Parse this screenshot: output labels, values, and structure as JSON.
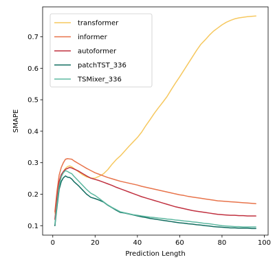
{
  "chart_data": {
    "type": "line",
    "title": "",
    "xlabel": "Prediction Length",
    "ylabel": "SMAPE",
    "xlim": [
      -4.8,
      101.8
    ],
    "ylim": [
      0.07,
      0.795
    ],
    "xticks": [
      0,
      20,
      40,
      60,
      80,
      100
    ],
    "yticks": [
      0.1,
      0.2,
      0.3,
      0.4,
      0.5,
      0.6,
      0.7
    ],
    "grid": false,
    "legend_position": "upper-left",
    "series": [
      {
        "name": "transformer",
        "color": "#f6c85f",
        "points": [
          [
            1,
            0.14
          ],
          [
            2,
            0.19
          ],
          [
            3,
            0.23
          ],
          [
            4,
            0.255
          ],
          [
            5,
            0.272
          ],
          [
            6,
            0.282
          ],
          [
            7,
            0.288
          ],
          [
            8,
            0.29
          ],
          [
            9,
            0.287
          ],
          [
            10,
            0.282
          ],
          [
            12,
            0.272
          ],
          [
            14,
            0.262
          ],
          [
            16,
            0.255
          ],
          [
            18,
            0.251
          ],
          [
            20,
            0.251
          ],
          [
            22,
            0.257
          ],
          [
            24,
            0.265
          ],
          [
            26,
            0.278
          ],
          [
            28,
            0.295
          ],
          [
            30,
            0.31
          ],
          [
            32,
            0.322
          ],
          [
            34,
            0.337
          ],
          [
            36,
            0.352
          ],
          [
            38,
            0.366
          ],
          [
            40,
            0.38
          ],
          [
            42,
            0.397
          ],
          [
            44,
            0.418
          ],
          [
            46,
            0.437
          ],
          [
            48,
            0.457
          ],
          [
            50,
            0.475
          ],
          [
            52,
            0.492
          ],
          [
            54,
            0.51
          ],
          [
            56,
            0.532
          ],
          [
            58,
            0.553
          ],
          [
            60,
            0.573
          ],
          [
            62,
            0.594
          ],
          [
            64,
            0.615
          ],
          [
            66,
            0.636
          ],
          [
            68,
            0.657
          ],
          [
            70,
            0.676
          ],
          [
            72,
            0.69
          ],
          [
            74,
            0.705
          ],
          [
            76,
            0.718
          ],
          [
            78,
            0.728
          ],
          [
            80,
            0.738
          ],
          [
            82,
            0.746
          ],
          [
            84,
            0.752
          ],
          [
            86,
            0.757
          ],
          [
            88,
            0.76
          ],
          [
            90,
            0.762
          ],
          [
            92,
            0.764
          ],
          [
            94,
            0.765
          ],
          [
            96,
            0.766
          ]
        ]
      },
      {
        "name": "informer",
        "color": "#e8734a",
        "points": [
          [
            1,
            0.145
          ],
          [
            2,
            0.21
          ],
          [
            3,
            0.26
          ],
          [
            4,
            0.285
          ],
          [
            5,
            0.3
          ],
          [
            6,
            0.311
          ],
          [
            7,
            0.313
          ],
          [
            8,
            0.312
          ],
          [
            9,
            0.311
          ],
          [
            10,
            0.306
          ],
          [
            12,
            0.298
          ],
          [
            14,
            0.29
          ],
          [
            16,
            0.282
          ],
          [
            18,
            0.275
          ],
          [
            20,
            0.268
          ],
          [
            22,
            0.263
          ],
          [
            24,
            0.258
          ],
          [
            26,
            0.253
          ],
          [
            28,
            0.249
          ],
          [
            30,
            0.245
          ],
          [
            32,
            0.241
          ],
          [
            34,
            0.238
          ],
          [
            36,
            0.235
          ],
          [
            38,
            0.232
          ],
          [
            40,
            0.229
          ],
          [
            42,
            0.225
          ],
          [
            44,
            0.222
          ],
          [
            46,
            0.219
          ],
          [
            48,
            0.216
          ],
          [
            50,
            0.213
          ],
          [
            52,
            0.21
          ],
          [
            54,
            0.207
          ],
          [
            56,
            0.204
          ],
          [
            58,
            0.201
          ],
          [
            60,
            0.198
          ],
          [
            62,
            0.196
          ],
          [
            64,
            0.193
          ],
          [
            66,
            0.191
          ],
          [
            68,
            0.189
          ],
          [
            70,
            0.187
          ],
          [
            72,
            0.185
          ],
          [
            74,
            0.183
          ],
          [
            76,
            0.181
          ],
          [
            78,
            0.179
          ],
          [
            80,
            0.178
          ],
          [
            82,
            0.177
          ],
          [
            84,
            0.176
          ],
          [
            86,
            0.175
          ],
          [
            88,
            0.174
          ],
          [
            90,
            0.173
          ],
          [
            92,
            0.172
          ],
          [
            94,
            0.171
          ],
          [
            96,
            0.17
          ]
        ]
      },
      {
        "name": "autoformer",
        "color": "#c0303f",
        "points": [
          [
            1,
            0.12
          ],
          [
            2,
            0.19
          ],
          [
            3,
            0.24
          ],
          [
            4,
            0.262
          ],
          [
            5,
            0.272
          ],
          [
            6,
            0.279
          ],
          [
            7,
            0.282
          ],
          [
            8,
            0.285
          ],
          [
            9,
            0.283
          ],
          [
            10,
            0.28
          ],
          [
            12,
            0.274
          ],
          [
            14,
            0.266
          ],
          [
            16,
            0.258
          ],
          [
            18,
            0.251
          ],
          [
            20,
            0.247
          ],
          [
            22,
            0.243
          ],
          [
            24,
            0.238
          ],
          [
            26,
            0.233
          ],
          [
            28,
            0.228
          ],
          [
            30,
            0.222
          ],
          [
            32,
            0.217
          ],
          [
            34,
            0.212
          ],
          [
            36,
            0.207
          ],
          [
            38,
            0.202
          ],
          [
            40,
            0.197
          ],
          [
            42,
            0.192
          ],
          [
            44,
            0.188
          ],
          [
            46,
            0.184
          ],
          [
            48,
            0.18
          ],
          [
            50,
            0.176
          ],
          [
            52,
            0.172
          ],
          [
            54,
            0.168
          ],
          [
            56,
            0.164
          ],
          [
            58,
            0.16
          ],
          [
            60,
            0.157
          ],
          [
            62,
            0.154
          ],
          [
            64,
            0.151
          ],
          [
            66,
            0.148
          ],
          [
            68,
            0.146
          ],
          [
            70,
            0.144
          ],
          [
            72,
            0.142
          ],
          [
            74,
            0.14
          ],
          [
            76,
            0.138
          ],
          [
            78,
            0.136
          ],
          [
            80,
            0.135
          ],
          [
            82,
            0.134
          ],
          [
            84,
            0.133
          ],
          [
            86,
            0.133
          ],
          [
            88,
            0.132
          ],
          [
            90,
            0.132
          ],
          [
            92,
            0.131
          ],
          [
            94,
            0.131
          ],
          [
            96,
            0.131
          ]
        ]
      },
      {
        "name": "patchTST_336",
        "color": "#0e6b5e",
        "points": [
          [
            1,
            0.1
          ],
          [
            2,
            0.16
          ],
          [
            3,
            0.215
          ],
          [
            4,
            0.24
          ],
          [
            5,
            0.252
          ],
          [
            6,
            0.258
          ],
          [
            7,
            0.254
          ],
          [
            8,
            0.253
          ],
          [
            9,
            0.248
          ],
          [
            10,
            0.24
          ],
          [
            12,
            0.228
          ],
          [
            14,
            0.214
          ],
          [
            16,
            0.2
          ],
          [
            18,
            0.19
          ],
          [
            20,
            0.186
          ],
          [
            22,
            0.181
          ],
          [
            24,
            0.175
          ],
          [
            26,
            0.165
          ],
          [
            28,
            0.157
          ],
          [
            30,
            0.149
          ],
          [
            32,
            0.142
          ],
          [
            34,
            0.14
          ],
          [
            36,
            0.137
          ],
          [
            38,
            0.134
          ],
          [
            40,
            0.131
          ],
          [
            42,
            0.128
          ],
          [
            44,
            0.126
          ],
          [
            46,
            0.123
          ],
          [
            48,
            0.121
          ],
          [
            50,
            0.119
          ],
          [
            52,
            0.117
          ],
          [
            54,
            0.115
          ],
          [
            56,
            0.113
          ],
          [
            58,
            0.111
          ],
          [
            60,
            0.109
          ],
          [
            62,
            0.108
          ],
          [
            64,
            0.106
          ],
          [
            66,
            0.105
          ],
          [
            68,
            0.103
          ],
          [
            70,
            0.102
          ],
          [
            72,
            0.1
          ],
          [
            74,
            0.099
          ],
          [
            76,
            0.097
          ],
          [
            78,
            0.096
          ],
          [
            80,
            0.095
          ],
          [
            82,
            0.094
          ],
          [
            84,
            0.093
          ],
          [
            86,
            0.093
          ],
          [
            88,
            0.092
          ],
          [
            90,
            0.092
          ],
          [
            92,
            0.092
          ],
          [
            94,
            0.091
          ],
          [
            96,
            0.091
          ]
        ]
      },
      {
        "name": "TSMixer_336",
        "color": "#5cb8a0",
        "points": [
          [
            1,
            0.105
          ],
          [
            2,
            0.17
          ],
          [
            3,
            0.225
          ],
          [
            4,
            0.255
          ],
          [
            5,
            0.268
          ],
          [
            6,
            0.275
          ],
          [
            7,
            0.272
          ],
          [
            8,
            0.268
          ],
          [
            9,
            0.265
          ],
          [
            10,
            0.257
          ],
          [
            12,
            0.243
          ],
          [
            14,
            0.229
          ],
          [
            16,
            0.215
          ],
          [
            18,
            0.203
          ],
          [
            20,
            0.196
          ],
          [
            22,
            0.186
          ],
          [
            24,
            0.176
          ],
          [
            26,
            0.166
          ],
          [
            28,
            0.158
          ],
          [
            30,
            0.151
          ],
          [
            32,
            0.144
          ],
          [
            34,
            0.141
          ],
          [
            36,
            0.138
          ],
          [
            38,
            0.135
          ],
          [
            40,
            0.133
          ],
          [
            42,
            0.131
          ],
          [
            44,
            0.129
          ],
          [
            46,
            0.127
          ],
          [
            48,
            0.126
          ],
          [
            50,
            0.124
          ],
          [
            52,
            0.123
          ],
          [
            54,
            0.121
          ],
          [
            56,
            0.12
          ],
          [
            58,
            0.118
          ],
          [
            60,
            0.117
          ],
          [
            62,
            0.115
          ],
          [
            64,
            0.114
          ],
          [
            66,
            0.112
          ],
          [
            68,
            0.111
          ],
          [
            70,
            0.109
          ],
          [
            72,
            0.107
          ],
          [
            74,
            0.106
          ],
          [
            76,
            0.104
          ],
          [
            78,
            0.102
          ],
          [
            80,
            0.1
          ],
          [
            82,
            0.099
          ],
          [
            84,
            0.098
          ],
          [
            86,
            0.097
          ],
          [
            88,
            0.097
          ],
          [
            90,
            0.096
          ],
          [
            92,
            0.096
          ],
          [
            94,
            0.096
          ],
          [
            96,
            0.096
          ]
        ]
      }
    ]
  }
}
